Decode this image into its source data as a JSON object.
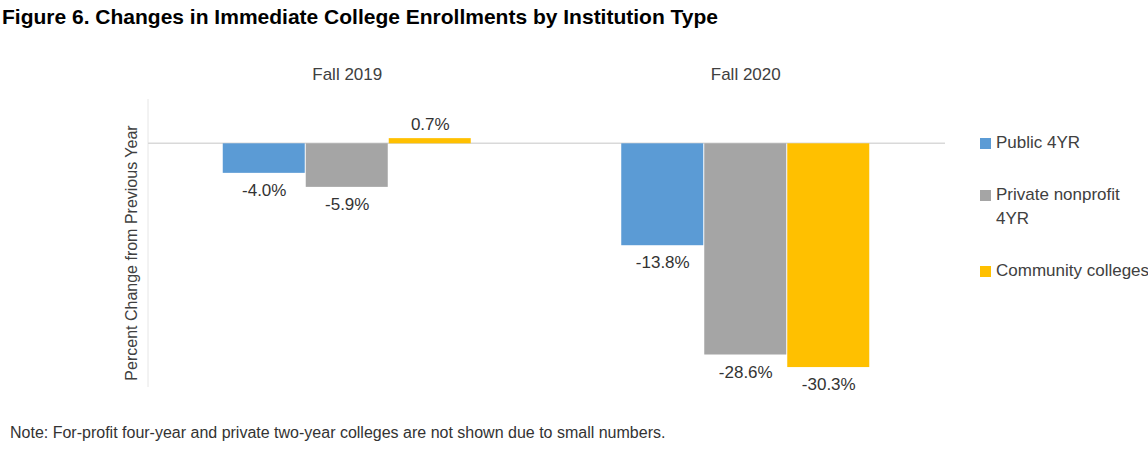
{
  "chart_data": {
    "type": "bar",
    "title": "Figure 6. Changes in Immediate College Enrollments by Institution Type",
    "y_label": "Percent Change from Previous Year",
    "note": "Note: For-profit four-year and private two-year colleges are not shown due to small numbers.",
    "categories": [
      "Fall 2019",
      "Fall 2020"
    ],
    "series": [
      {
        "name": "Public 4YR",
        "color": "#5b9bd5",
        "values": [
          -4.0,
          -13.8
        ],
        "value_labels": [
          "-4.0%",
          "-13.8%"
        ]
      },
      {
        "name": "Private nonprofit 4YR",
        "color": "#a5a5a5",
        "values": [
          -5.9,
          -28.6
        ],
        "value_labels": [
          "-5.9%",
          "-28.6%"
        ]
      },
      {
        "name": "Community colleges",
        "color": "#ffc000",
        "values": [
          0.7,
          -30.3
        ],
        "value_labels": [
          "0.7%",
          "-30.3%"
        ]
      }
    ],
    "ylim": [
      -33,
      6
    ],
    "yticks": [
      0
    ],
    "grid": true,
    "tick_labels": false,
    "data_labels": true,
    "legend": "right"
  }
}
